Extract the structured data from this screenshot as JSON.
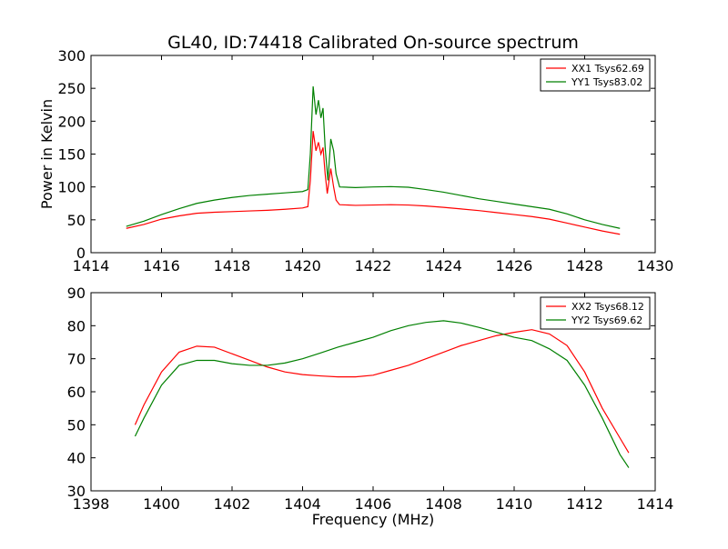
{
  "figure": {
    "title": "GL40, ID:74418 Calibrated On-source spectrum"
  },
  "chart_data": [
    {
      "type": "line",
      "title": "GL40, ID:74418 Calibrated On-source spectrum",
      "xlabel": "",
      "ylabel": "Power in Kelvin",
      "xlim": [
        1414,
        1430
      ],
      "ylim": [
        0,
        300
      ],
      "x_ticks": [
        1414,
        1416,
        1418,
        1420,
        1422,
        1424,
        1426,
        1428,
        1430
      ],
      "y_ticks": [
        0,
        50,
        100,
        150,
        200,
        250,
        300
      ],
      "grid": false,
      "legend_position": "top-right",
      "series": [
        {
          "name": "XX1 Tsys62.69",
          "color": "#ff0000",
          "points": [
            [
              1415.0,
              37
            ],
            [
              1415.5,
              43
            ],
            [
              1416.0,
              51
            ],
            [
              1416.5,
              56
            ],
            [
              1417.0,
              60
            ],
            [
              1417.5,
              61.5
            ],
            [
              1418.0,
              62.5
            ],
            [
              1418.5,
              63.5
            ],
            [
              1419.0,
              64.5
            ],
            [
              1419.5,
              66
            ],
            [
              1420.0,
              68
            ],
            [
              1420.15,
              70
            ],
            [
              1420.22,
              110
            ],
            [
              1420.3,
              185
            ],
            [
              1420.38,
              155
            ],
            [
              1420.45,
              168
            ],
            [
              1420.52,
              150
            ],
            [
              1420.58,
              160
            ],
            [
              1420.64,
              120
            ],
            [
              1420.7,
              90
            ],
            [
              1420.8,
              128
            ],
            [
              1420.88,
              100
            ],
            [
              1420.95,
              80
            ],
            [
              1421.05,
              73
            ],
            [
              1421.5,
              72
            ],
            [
              1422.0,
              72.5
            ],
            [
              1422.5,
              73
            ],
            [
              1423.0,
              72.5
            ],
            [
              1423.5,
              71
            ],
            [
              1424.0,
              69
            ],
            [
              1424.5,
              66.5
            ],
            [
              1425.0,
              64
            ],
            [
              1425.5,
              61
            ],
            [
              1426.0,
              58
            ],
            [
              1426.5,
              55
            ],
            [
              1427.0,
              51
            ],
            [
              1427.5,
              45
            ],
            [
              1428.0,
              39
            ],
            [
              1428.5,
              33
            ],
            [
              1429.0,
              28
            ]
          ]
        },
        {
          "name": "YY1 Tsys83.02",
          "color": "#008000",
          "points": [
            [
              1415.0,
              40
            ],
            [
              1415.5,
              48
            ],
            [
              1416.0,
              58
            ],
            [
              1416.5,
              67
            ],
            [
              1417.0,
              75
            ],
            [
              1417.5,
              80
            ],
            [
              1418.0,
              84
            ],
            [
              1418.5,
              87
            ],
            [
              1419.0,
              89
            ],
            [
              1419.5,
              91
            ],
            [
              1420.0,
              93
            ],
            [
              1420.15,
              96
            ],
            [
              1420.22,
              150
            ],
            [
              1420.3,
              253
            ],
            [
              1420.38,
              210
            ],
            [
              1420.45,
              232
            ],
            [
              1420.52,
              205
            ],
            [
              1420.58,
              220
            ],
            [
              1420.64,
              160
            ],
            [
              1420.72,
              110
            ],
            [
              1420.8,
              173
            ],
            [
              1420.88,
              155
            ],
            [
              1420.95,
              120
            ],
            [
              1421.05,
              100
            ],
            [
              1421.5,
              99
            ],
            [
              1422.0,
              100
            ],
            [
              1422.5,
              100.5
            ],
            [
              1423.0,
              99.5
            ],
            [
              1423.5,
              96
            ],
            [
              1424.0,
              92
            ],
            [
              1424.5,
              87
            ],
            [
              1425.0,
              82
            ],
            [
              1425.5,
              78
            ],
            [
              1426.0,
              74
            ],
            [
              1426.5,
              70
            ],
            [
              1427.0,
              66
            ],
            [
              1427.5,
              59
            ],
            [
              1428.0,
              50
            ],
            [
              1428.5,
              43
            ],
            [
              1429.0,
              37
            ]
          ]
        }
      ]
    },
    {
      "type": "line",
      "title": "",
      "xlabel": "Frequency (MHz)",
      "ylabel": "",
      "xlim": [
        1398,
        1414
      ],
      "ylim": [
        30,
        90
      ],
      "x_ticks": [
        1398,
        1400,
        1402,
        1404,
        1406,
        1408,
        1410,
        1412,
        1414
      ],
      "y_ticks": [
        30,
        40,
        50,
        60,
        70,
        80,
        90
      ],
      "grid": false,
      "legend_position": "top-right",
      "series": [
        {
          "name": "XX2 Tsys68.12",
          "color": "#ff0000",
          "points": [
            [
              1399.25,
              50
            ],
            [
              1399.5,
              56
            ],
            [
              1400.0,
              66
            ],
            [
              1400.5,
              72
            ],
            [
              1401.0,
              73.8
            ],
            [
              1401.5,
              73.5
            ],
            [
              1402.0,
              71.5
            ],
            [
              1402.5,
              69.5
            ],
            [
              1403.0,
              67.5
            ],
            [
              1403.5,
              66
            ],
            [
              1404.0,
              65.2
            ],
            [
              1404.5,
              64.8
            ],
            [
              1405.0,
              64.5
            ],
            [
              1405.5,
              64.5
            ],
            [
              1406.0,
              65
            ],
            [
              1406.5,
              66.5
            ],
            [
              1407.0,
              68
            ],
            [
              1407.5,
              70
            ],
            [
              1408.0,
              72
            ],
            [
              1408.5,
              74
            ],
            [
              1409.0,
              75.5
            ],
            [
              1409.5,
              77
            ],
            [
              1410.0,
              78
            ],
            [
              1410.5,
              78.8
            ],
            [
              1411.0,
              77.5
            ],
            [
              1411.5,
              74
            ],
            [
              1412.0,
              66
            ],
            [
              1412.5,
              55
            ],
            [
              1413.0,
              46
            ],
            [
              1413.25,
              41.5
            ]
          ]
        },
        {
          "name": "YY2 Tsys69.62",
          "color": "#008000",
          "points": [
            [
              1399.25,
              46.5
            ],
            [
              1399.5,
              52
            ],
            [
              1400.0,
              62
            ],
            [
              1400.5,
              68
            ],
            [
              1401.0,
              69.5
            ],
            [
              1401.5,
              69.5
            ],
            [
              1402.0,
              68.5
            ],
            [
              1402.5,
              68
            ],
            [
              1403.0,
              68
            ],
            [
              1403.5,
              68.7
            ],
            [
              1404.0,
              70
            ],
            [
              1404.5,
              71.7
            ],
            [
              1405.0,
              73.5
            ],
            [
              1405.5,
              75
            ],
            [
              1406.0,
              76.5
            ],
            [
              1406.5,
              78.5
            ],
            [
              1407.0,
              80
            ],
            [
              1407.5,
              81
            ],
            [
              1408.0,
              81.5
            ],
            [
              1408.5,
              80.8
            ],
            [
              1409.0,
              79.5
            ],
            [
              1409.5,
              78
            ],
            [
              1410.0,
              76.5
            ],
            [
              1410.5,
              75.5
            ],
            [
              1411.0,
              73
            ],
            [
              1411.5,
              69.5
            ],
            [
              1412.0,
              62
            ],
            [
              1412.5,
              52
            ],
            [
              1413.0,
              41
            ],
            [
              1413.25,
              37
            ]
          ]
        }
      ]
    }
  ]
}
